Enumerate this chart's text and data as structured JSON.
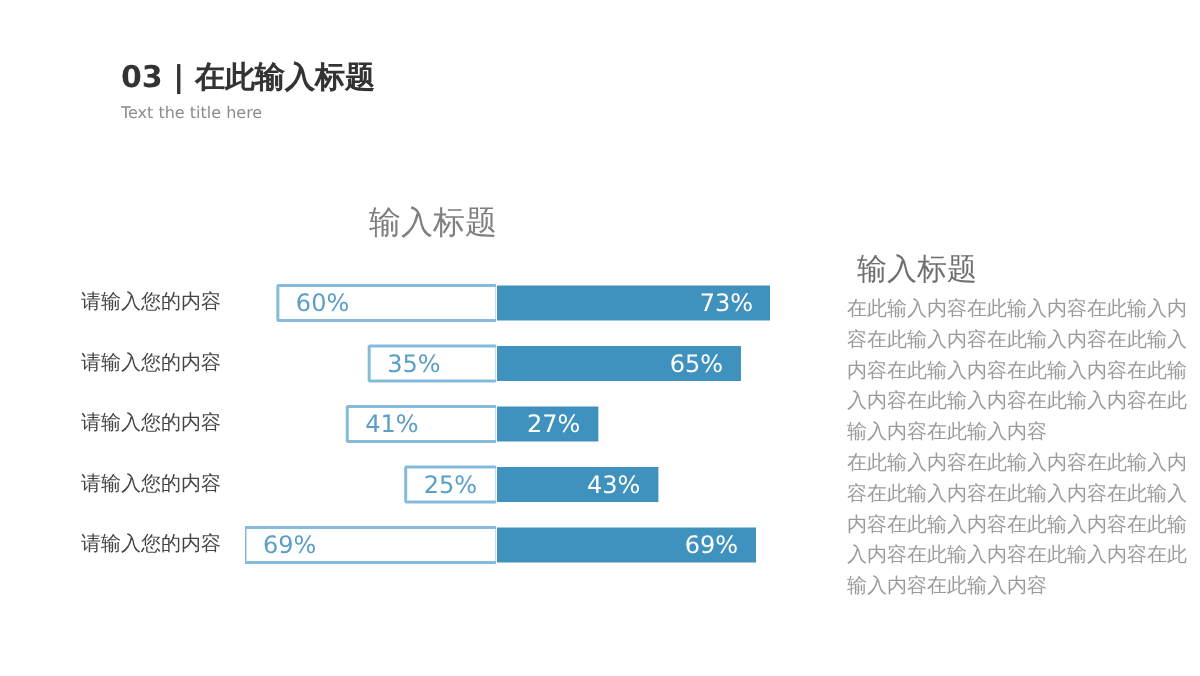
{
  "chart_data": [
    {
      "type": "other",
      "title": "03 | 在此输入标题",
      "subtitle": "Text the title here"
    },
    {
      "type": "bar",
      "orientation": "horizontal",
      "title": "输入标题",
      "categories": [
        "请输入您的内容",
        "请输入您的内容",
        "请输入您的内容",
        "请输入您的内容",
        "请输入您的内容"
      ],
      "color": "#ffffff",
      "values": [
        60,
        35,
        41,
        25,
        69
      ],
      "value_labels": [
        "60%",
        "35%",
        "41%",
        "25%",
        "69%"
      ],
      "xlim": [
        69,
        0
      ],
      "tick_labels": "y"
    },
    {
      "type": "bar",
      "orientation": "horizontal",
      "categories": [
        "请输入您的内容",
        "请输入您的内容",
        "请输入您的内容",
        "请输入您的内容",
        "请输入您的内容"
      ],
      "color": "#3f92bd",
      "values": [
        73,
        65,
        27,
        43,
        69
      ],
      "value_labels": [
        "73%",
        "65%",
        "27%",
        "43%",
        "69%"
      ],
      "xlim": [
        0,
        73
      ],
      "tick_labels": false
    },
    {
      "type": "other",
      "title": "输入标题",
      "annotations": [
        "在此输入内容在此输入内容在此输入内容在此输入内容在此输入内容在此输入内容在此输入内容在此输入内容在此输入内容在此输入内容在此输入内容在此输入内容在此输入内容",
        "在此输入内容在此输入内容在此输入内容在此输入内容在此输入内容在此输入内容在此输入内容在此输入内容在此输入内容在此输入内容在此输入内容在此输入内容在此输入内容"
      ]
    }
  ]
}
